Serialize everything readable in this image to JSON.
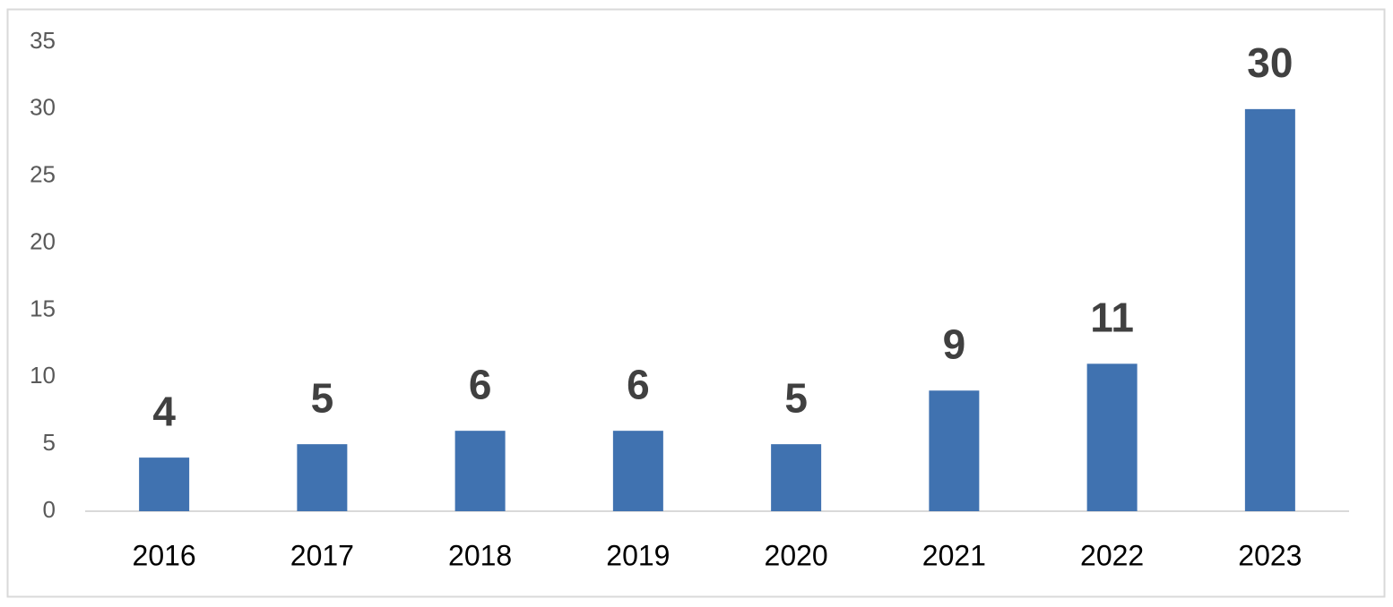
{
  "chart_data": {
    "type": "bar",
    "categories": [
      "2016",
      "2017",
      "2018",
      "2019",
      "2020",
      "2021",
      "2022",
      "2023"
    ],
    "values": [
      4,
      5,
      6,
      6,
      5,
      9,
      11,
      30
    ],
    "color": "#4072b0",
    "ylim": [
      0,
      35
    ],
    "yticks": [
      0,
      5,
      10,
      15,
      20,
      25,
      30,
      35
    ],
    "grid": false
  }
}
